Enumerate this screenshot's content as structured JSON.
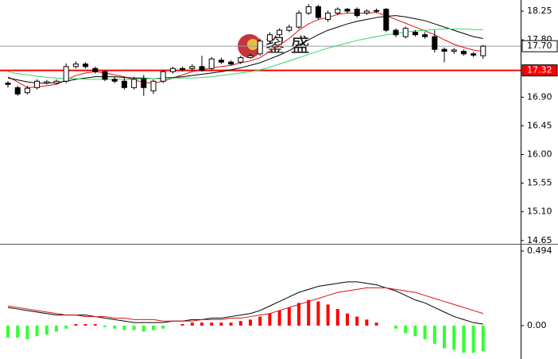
{
  "chart_data": [
    {
      "type": "candlestick",
      "ylim": [
        14.61,
        18.425
      ],
      "yticks": [
        18.25,
        {
          "value": 17.8,
          "label": "17.80"
        },
        {
          "value": 16.9,
          "label": "16.90"
        },
        16.45,
        {
          "value": 16.0,
          "label": "16.00"
        },
        15.55,
        {
          "value": 15.1,
          "label": "15.10"
        },
        14.65
      ],
      "annotation": "鋆 盛",
      "up_color": "#ffffff",
      "down_color": "#000000",
      "open": [
        17.12,
        17.05,
        16.97,
        17.05,
        17.12,
        17.12,
        17.15,
        17.38,
        17.42,
        17.35,
        17.3,
        17.18,
        17.15,
        17.05,
        17.18,
        17.0,
        17.15,
        17.3,
        17.35,
        17.35,
        17.38,
        17.35,
        17.48,
        17.45,
        17.45,
        17.52,
        17.58,
        17.78,
        17.88,
        17.95,
        18.0,
        18.22,
        18.32,
        18.12,
        18.22,
        18.28,
        18.28,
        18.22,
        18.25,
        18.28,
        17.95,
        17.85,
        17.92,
        17.88,
        17.85,
        17.65,
        17.62,
        17.62,
        17.58,
        17.55
      ],
      "high": [
        17.15,
        17.08,
        17.08,
        17.18,
        17.17,
        17.18,
        17.43,
        17.46,
        17.45,
        17.38,
        17.32,
        17.22,
        17.2,
        17.22,
        17.25,
        17.18,
        17.33,
        17.38,
        17.38,
        17.42,
        17.55,
        17.53,
        17.52,
        17.48,
        17.55,
        17.58,
        17.82,
        17.92,
        17.98,
        18.04,
        18.26,
        18.36,
        18.35,
        18.26,
        18.31,
        18.3,
        18.31,
        18.28,
        18.29,
        18.3,
        17.98,
        18.01,
        17.95,
        17.92,
        17.95,
        17.68,
        17.67,
        17.65,
        17.61,
        17.72
      ],
      "low": [
        17.05,
        16.92,
        16.94,
        17.02,
        17.1,
        17.1,
        17.12,
        17.35,
        17.35,
        17.27,
        17.15,
        17.12,
        17.02,
        17.02,
        16.92,
        16.95,
        17.12,
        17.27,
        17.3,
        17.32,
        17.3,
        17.32,
        17.42,
        17.4,
        17.42,
        17.5,
        17.55,
        17.75,
        17.85,
        17.92,
        17.97,
        18.19,
        18.12,
        18.08,
        18.19,
        18.22,
        18.15,
        18.19,
        18.22,
        17.92,
        17.84,
        17.82,
        17.85,
        17.82,
        17.6,
        17.45,
        17.58,
        17.55,
        17.53,
        17.5
      ],
      "close": [
        17.1,
        16.95,
        17.04,
        17.15,
        17.14,
        17.15,
        17.38,
        17.42,
        17.38,
        17.3,
        17.18,
        17.15,
        17.05,
        17.18,
        17.05,
        17.15,
        17.3,
        17.35,
        17.33,
        17.38,
        17.32,
        17.5,
        17.45,
        17.42,
        17.52,
        17.55,
        17.78,
        17.88,
        17.95,
        18.0,
        18.22,
        18.32,
        18.15,
        18.22,
        18.28,
        18.25,
        18.18,
        18.25,
        18.26,
        17.95,
        17.88,
        17.98,
        17.88,
        17.85,
        17.65,
        17.62,
        17.64,
        17.58,
        17.56,
        17.7
      ],
      "lines": [
        {
          "color": "#e01010",
          "values": [
            17.22,
            17.14,
            17.05,
            17.06,
            17.08,
            17.1,
            17.17,
            17.24,
            17.28,
            17.3,
            17.28,
            17.25,
            17.22,
            17.17,
            17.13,
            17.12,
            17.15,
            17.2,
            17.25,
            17.3,
            17.33,
            17.36,
            17.38,
            17.4,
            17.44,
            17.47,
            17.52,
            17.62,
            17.72,
            17.82,
            17.95,
            18.05,
            18.12,
            18.15,
            18.2,
            18.22,
            18.22,
            18.22,
            18.23,
            18.18,
            18.12,
            18.06,
            18.0,
            17.94,
            17.88,
            17.8,
            17.73,
            17.68,
            17.64,
            17.62
          ]
        },
        {
          "color": "#000000",
          "values": [
            17.2,
            17.17,
            17.14,
            17.12,
            17.12,
            17.13,
            17.15,
            17.18,
            17.2,
            17.22,
            17.22,
            17.22,
            17.21,
            17.2,
            17.2,
            17.19,
            17.2,
            17.21,
            17.22,
            17.24,
            17.26,
            17.28,
            17.3,
            17.33,
            17.36,
            17.4,
            17.44,
            17.5,
            17.56,
            17.63,
            17.72,
            17.8,
            17.88,
            17.95,
            18.0,
            18.05,
            18.09,
            18.12,
            18.15,
            18.17,
            18.18,
            18.16,
            18.13,
            18.1,
            18.05,
            18.0,
            17.95,
            17.9,
            17.85,
            17.82
          ]
        },
        {
          "color": "#33d966",
          "values": [
            17.3,
            17.27,
            17.25,
            17.23,
            17.21,
            17.2,
            17.19,
            17.19,
            17.18,
            17.18,
            17.18,
            17.18,
            17.18,
            17.18,
            17.19,
            17.19,
            17.19,
            17.2,
            17.2,
            17.2,
            17.21,
            17.22,
            17.24,
            17.26,
            17.28,
            17.3,
            17.33,
            17.37,
            17.42,
            17.47,
            17.52,
            17.57,
            17.62,
            17.67,
            17.71,
            17.75,
            17.79,
            17.82,
            17.85,
            17.88,
            17.9,
            17.92,
            17.94,
            17.95,
            17.96,
            17.97,
            17.97,
            17.97,
            17.96,
            17.96
          ]
        }
      ],
      "hlines": [
        {
          "value": 17.7,
          "label": "17.70",
          "color": "#999999",
          "label_bg": "#ffffff",
          "label_fg": "#000000"
        },
        {
          "value": 17.32,
          "label": "17.32",
          "color": "#ff0000",
          "label_bg": "#ff0000",
          "label_fg": "#ffffff"
        }
      ]
    },
    {
      "type": "macd",
      "ylim": [
        -0.221,
        0.531
      ],
      "yticks": [
        0.494,
        {
          "value": 0,
          "label": "0.00"
        }
      ],
      "pos_color": "#ff0000",
      "neg_color": "#33ff33",
      "hist": [
        -0.08,
        -0.08,
        -0.09,
        -0.07,
        -0.06,
        -0.04,
        -0.02,
        0.01,
        0.01,
        0.01,
        -0.01,
        -0.02,
        -0.03,
        -0.03,
        -0.04,
        -0.03,
        -0.02,
        0.0,
        0.01,
        0.02,
        0.02,
        0.02,
        0.02,
        0.02,
        0.03,
        0.04,
        0.06,
        0.08,
        0.1,
        0.12,
        0.15,
        0.17,
        0.16,
        0.14,
        0.11,
        0.08,
        0.06,
        0.04,
        0.02,
        0.0,
        -0.02,
        -0.05,
        -0.07,
        -0.09,
        -0.12,
        -0.15,
        -0.16,
        -0.18,
        -0.18,
        -0.17
      ],
      "lines": [
        {
          "color": "#000000",
          "values": [
            0.12,
            0.11,
            0.1,
            0.09,
            0.08,
            0.07,
            0.07,
            0.07,
            0.07,
            0.06,
            0.05,
            0.04,
            0.03,
            0.02,
            0.02,
            0.02,
            0.02,
            0.03,
            0.03,
            0.04,
            0.04,
            0.05,
            0.05,
            0.06,
            0.07,
            0.08,
            0.1,
            0.13,
            0.16,
            0.19,
            0.22,
            0.24,
            0.26,
            0.27,
            0.28,
            0.29,
            0.29,
            0.28,
            0.27,
            0.25,
            0.23,
            0.2,
            0.17,
            0.15,
            0.12,
            0.09,
            0.06,
            0.04,
            0.02,
            0.01
          ]
        },
        {
          "color": "#e01010",
          "values": [
            0.13,
            0.12,
            0.11,
            0.1,
            0.09,
            0.08,
            0.07,
            0.07,
            0.06,
            0.06,
            0.06,
            0.05,
            0.05,
            0.04,
            0.04,
            0.04,
            0.03,
            0.03,
            0.03,
            0.03,
            0.04,
            0.04,
            0.04,
            0.05,
            0.05,
            0.06,
            0.07,
            0.08,
            0.1,
            0.12,
            0.14,
            0.16,
            0.18,
            0.2,
            0.22,
            0.23,
            0.24,
            0.25,
            0.25,
            0.25,
            0.24,
            0.23,
            0.22,
            0.2,
            0.18,
            0.16,
            0.14,
            0.12,
            0.1,
            0.08
          ]
        }
      ]
    }
  ]
}
